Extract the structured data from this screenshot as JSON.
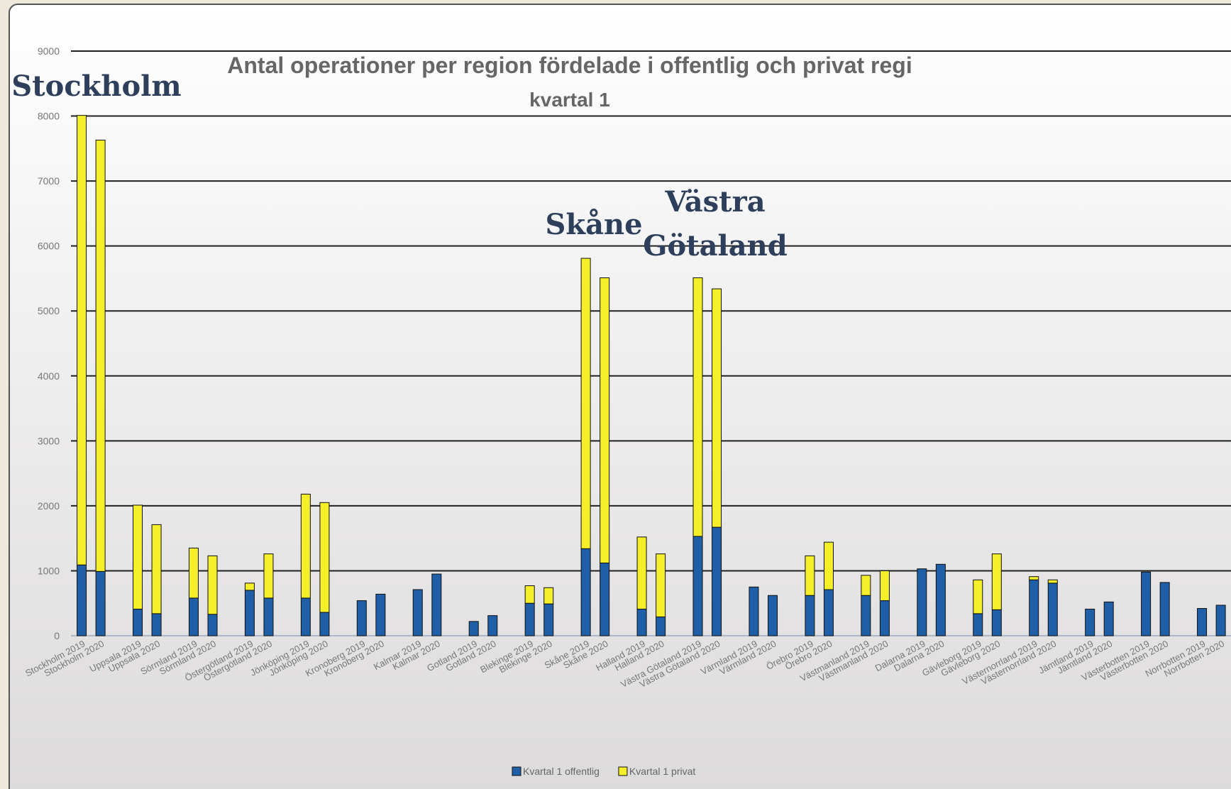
{
  "chart_data": {
    "type": "stacked_bar",
    "title": "Antal operationer per region fördelade i offentlig och privat regi",
    "subtitle": "kvartal 1",
    "annotations": [
      "Stockholm",
      "Skåne",
      "Västra",
      "Götaland"
    ],
    "categories": [
      "Stockholm 2019",
      "Stockholm 2020",
      "Uppsala 2019",
      "Uppsala 2020",
      "Sörmland 2019",
      "Sörmland 2020",
      "Östergötland 2019",
      "Östergötland 2020",
      "Jönköping 2019",
      "Jönköping 2020",
      "Kronoberg 2019",
      "Kronoberg 2020",
      "Kalmar 2019",
      "Kalmar 2020",
      "Gotland 2019",
      "Gotland 2020",
      "Blekinge 2019",
      "Blekinge 2020",
      "Skåne 2019",
      "Skåne 2020",
      "Halland 2019",
      "Halland 2020",
      "Västra Götaland 2019",
      "Västra Götaland 2020",
      "Värmland 2019",
      "Värmland 2020",
      "Örebro 2019",
      "Örebro 2020",
      "Västmanland 2019",
      "Västmanland 2020",
      "Dalarna 2019",
      "Dalarna 2020",
      "Gävleborg 2019",
      "Gävleborg 2020",
      "Västernorrland 2019",
      "Västernorrland 2020",
      "Jämtland 2019",
      "Jämtland 2020",
      "Västerbotten 2019",
      "Västerbotten 2020",
      "Norrbotten 2019",
      "Norrbotten 2020"
    ],
    "series": [
      {
        "name": "Kvartal 1 offentlig",
        "color": "#1f5fa8",
        "values": [
          1090,
          990,
          410,
          340,
          580,
          330,
          700,
          580,
          580,
          360,
          540,
          640,
          710,
          950,
          220,
          310,
          500,
          490,
          1340,
          1120,
          410,
          290,
          1530,
          1670,
          750,
          620,
          620,
          710,
          620,
          540,
          1030,
          1100,
          340,
          400,
          860,
          810,
          410,
          520,
          980,
          820,
          420,
          470
        ]
      },
      {
        "name": "Kvartal 1 privat",
        "color": "#f5ef2a",
        "values": [
          6920,
          6640,
          1600,
          1370,
          770,
          900,
          110,
          680,
          1600,
          1690,
          0,
          0,
          0,
          0,
          0,
          0,
          270,
          250,
          4470,
          4390,
          1110,
          970,
          3980,
          3670,
          0,
          0,
          610,
          730,
          310,
          460,
          0,
          0,
          520,
          860,
          50,
          50,
          0,
          0,
          0,
          0,
          0,
          0
        ]
      }
    ],
    "ylim": [
      0,
      9000
    ],
    "yticks": [
      0,
      1000,
      2000,
      3000,
      4000,
      5000,
      6000,
      7000,
      8000,
      9000
    ],
    "grid": true,
    "legend": "bottom"
  }
}
